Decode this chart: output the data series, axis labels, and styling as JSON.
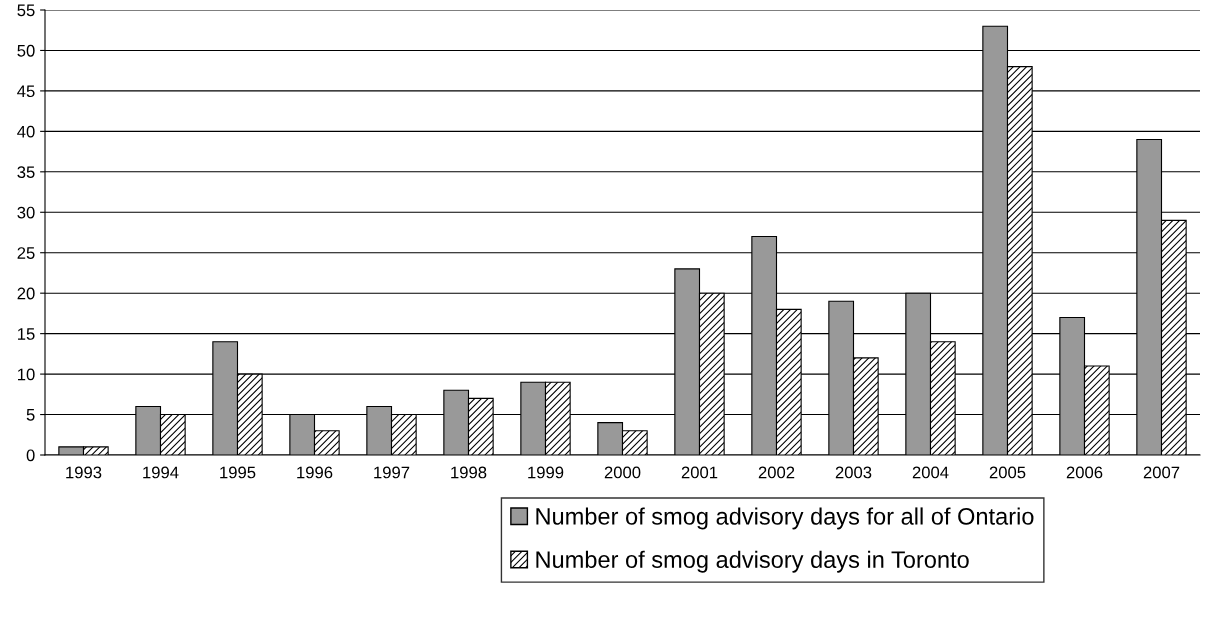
{
  "chart_data": {
    "type": "bar",
    "categories": [
      "1993",
      "1994",
      "1995",
      "1996",
      "1997",
      "1998",
      "1999",
      "2000",
      "2001",
      "2002",
      "2003",
      "2004",
      "2005",
      "2006",
      "2007"
    ],
    "series": [
      {
        "name": "Number of smog advisory days for all of Ontario",
        "color": "#999999",
        "values": [
          1,
          6,
          14,
          5,
          6,
          8,
          9,
          4,
          23,
          27,
          19,
          20,
          53,
          17,
          39
        ]
      },
      {
        "name": "Number of smog advisory days in Toronto",
        "color": "#000000",
        "values": [
          1,
          5,
          10,
          3,
          5,
          7,
          9,
          3,
          20,
          18,
          12,
          14,
          48,
          11,
          29
        ]
      }
    ],
    "ylim": [
      0,
      55
    ],
    "yticks": [
      0,
      5,
      10,
      15,
      20,
      25,
      30,
      35,
      40,
      45,
      50,
      55
    ],
    "grid": "y",
    "legend": "bottom"
  }
}
